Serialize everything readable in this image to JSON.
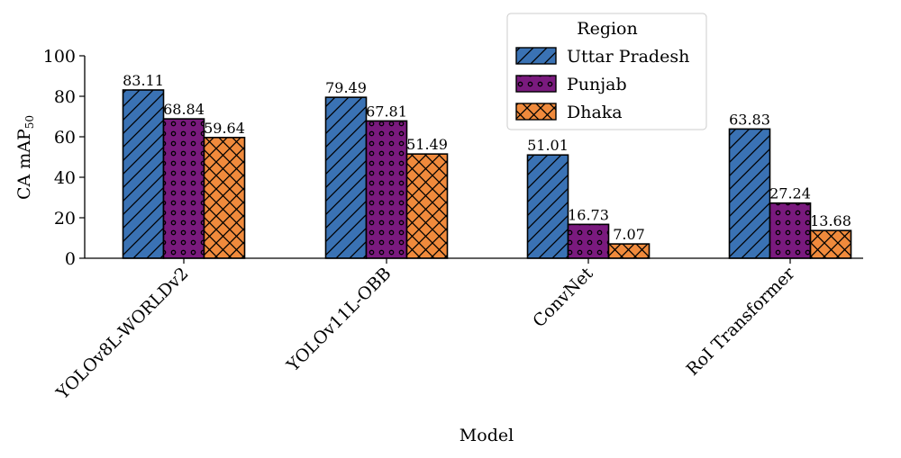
{
  "chart_data": {
    "type": "bar",
    "categories": [
      "YOLOv8L-WORLDv2",
      "YOLOv11L-OBB",
      "ConvNet",
      "RoI Transformer"
    ],
    "series": [
      {
        "name": "Uttar Pradesh",
        "values": [
          83.11,
          79.49,
          51.01,
          63.83
        ],
        "color": "#3a72b4",
        "pattern": "diagonal-hatch"
      },
      {
        "name": "Punjab",
        "values": [
          68.84,
          67.81,
          16.73,
          27.24
        ],
        "color": "#7a1a7e",
        "pattern": "circles"
      },
      {
        "name": "Dhaka",
        "values": [
          59.64,
          51.49,
          7.07,
          13.68
        ],
        "color": "#f08a3c",
        "pattern": "cross-hatch"
      }
    ],
    "data_labels": [
      [
        "83.11",
        "79.49",
        "51.01",
        "63.83"
      ],
      [
        "68.84",
        "67.81",
        "16.73",
        "27.24"
      ],
      [
        "59.64",
        "51.49",
        "7.07",
        "13.68"
      ]
    ],
    "xlabel": "Model",
    "ylabel": "CA mAP",
    "ylabel_subscript": "50",
    "ylim": [
      0,
      100
    ],
    "yticks": [
      "0",
      "20",
      "40",
      "60",
      "80",
      "100"
    ],
    "legend": {
      "title": "Region",
      "placement": "top-center"
    },
    "grid": false
  }
}
